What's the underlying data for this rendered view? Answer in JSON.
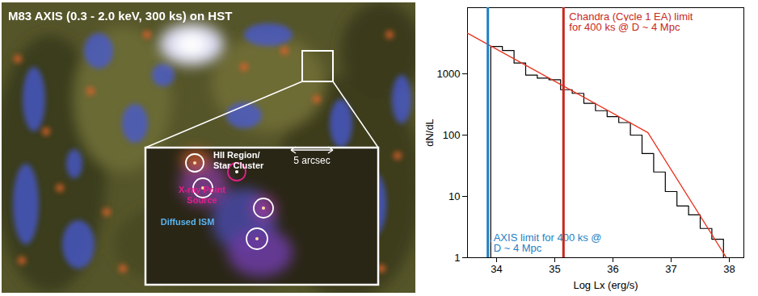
{
  "image_panel": {
    "title": "M83 AXIS (0.3 - 2.0 keV, 300 ks) on HST",
    "scale_bar": "5 arcsec",
    "labels": [
      {
        "text": "HII Region/\nStar Cluster",
        "color": "#ffffff"
      },
      {
        "text": "X-ray Point\nSource",
        "color": "#e0208a"
      },
      {
        "text": "Diffused ISM",
        "color": "#5ab4f0"
      }
    ]
  },
  "chart_data": {
    "type": "histogram",
    "xlabel": "Log Lx (erg/s)",
    "ylabel": "dN/dL",
    "log": "y",
    "xlim": [
      33.5,
      38.25
    ],
    "ylim": [
      1,
      12000
    ],
    "xticks": [
      34,
      35,
      36,
      37,
      38
    ],
    "yticks": [
      1,
      10,
      100,
      1000
    ],
    "bins": [
      33.9,
      34.1,
      34.3,
      34.5,
      34.7,
      34.9,
      35.1,
      35.3,
      35.5,
      35.7,
      35.9,
      36.1,
      36.3,
      36.5,
      36.7,
      36.9,
      37.1,
      37.3,
      37.5,
      37.7,
      37.9
    ],
    "counts": [
      2800,
      2400,
      1500,
      950,
      850,
      800,
      550,
      480,
      330,
      250,
      200,
      160,
      100,
      50,
      25,
      12,
      7,
      5,
      3,
      2
    ],
    "color": "#000000",
    "fit": {
      "type": "line",
      "x": [
        33.5,
        36.6,
        37.95
      ],
      "values": [
        4600,
        110,
        1
      ],
      "color": "#e8321e"
    },
    "annotations": [
      {
        "type": "vline",
        "x": 33.85,
        "text": "AXIS limit for 400 ks @\nD ~ 4 Mpc",
        "color": "#1f7fc4"
      },
      {
        "type": "vline",
        "x": 35.15,
        "text": "Chandra (Cycle 1 EA) limit\nfor 400 ks @ D ~ 4 Mpc",
        "color": "#c8281e"
      }
    ]
  }
}
